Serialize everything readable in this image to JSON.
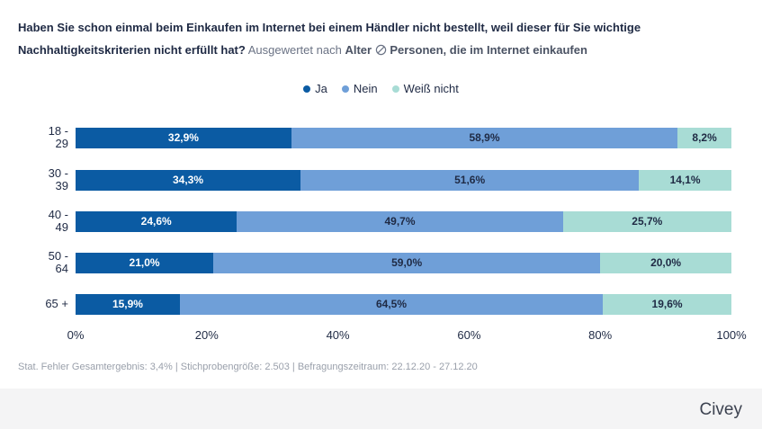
{
  "chart_data": {
    "type": "bar",
    "orientation": "horizontal",
    "stacked": true,
    "title": "Haben Sie schon einmal beim Einkaufen im Internet bei einem Händler nicht bestellt, weil dieser für Sie wichtige Nachhaltigkeitskriterien nicht erfüllt hat?",
    "filter_prefix": "Ausgewertet nach",
    "filter": "Alter",
    "population": "Personen, die im Internet einkaufen",
    "categories": [
      "18 - 29",
      "30 - 39",
      "40 - 49",
      "50 - 64",
      "65 +"
    ],
    "series": [
      {
        "name": "Ja",
        "color": "#0b5ba3",
        "label_color": "#ffffff",
        "values": [
          32.9,
          34.3,
          24.6,
          21.0,
          15.9
        ],
        "value_labels": [
          "32,9%",
          "34,3%",
          "24,6%",
          "21,0%",
          "15,9%"
        ]
      },
      {
        "name": "Nein",
        "color": "#6f9fd8",
        "label_color": "#1f2a44",
        "values": [
          58.9,
          51.6,
          49.7,
          59.0,
          64.5
        ],
        "value_labels": [
          "58,9%",
          "51,6%",
          "49,7%",
          "59,0%",
          "64,5%"
        ]
      },
      {
        "name": "Weiß nicht",
        "color": "#a8dcd5",
        "label_color": "#1f2a44",
        "values": [
          8.2,
          14.1,
          25.7,
          20.0,
          19.6
        ],
        "value_labels": [
          "8,2%",
          "14,1%",
          "25,7%",
          "20,0%",
          "19,6%"
        ]
      }
    ],
    "xlim": [
      0,
      100
    ],
    "xticks": [
      {
        "value": 0,
        "label": "0%"
      },
      {
        "value": 20,
        "label": "20%"
      },
      {
        "value": 40,
        "label": "40%"
      },
      {
        "value": 60,
        "label": "60%"
      },
      {
        "value": 80,
        "label": "80%"
      },
      {
        "value": 100,
        "label": "100%"
      }
    ],
    "legend": "top",
    "footnote": "Stat. Fehler Gesamtergebnis: 3,4% | Stichprobengröße: 2.503 | Befragungszeitraum: 22.12.20 - 27.12.20"
  },
  "brand": "Civey"
}
